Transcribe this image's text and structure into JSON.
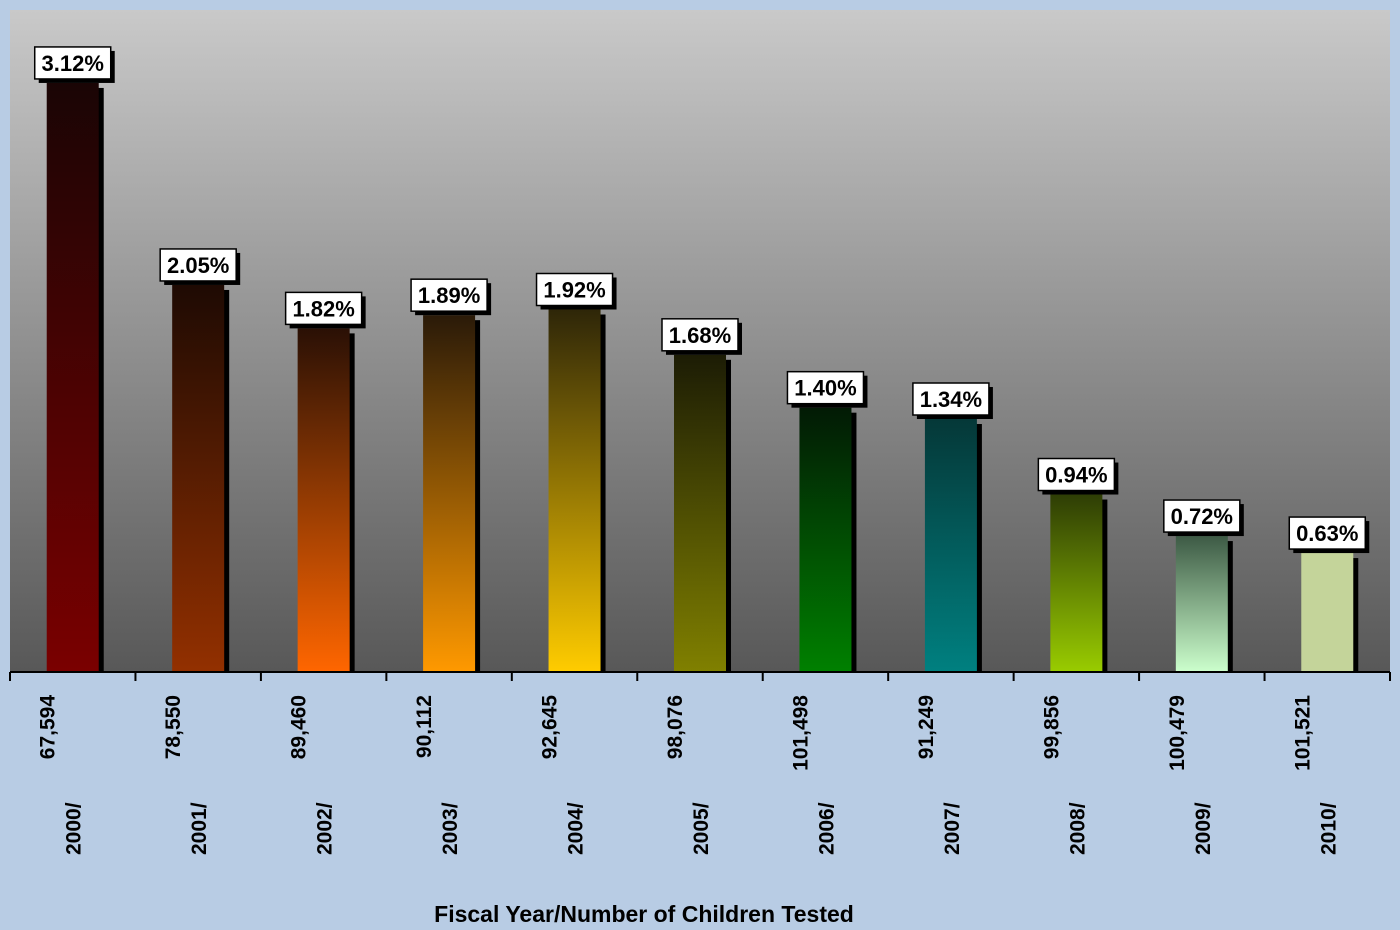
{
  "chart_data": {
    "type": "bar",
    "title": "",
    "xlabel": "Fiscal Year/Number of Children Tested",
    "ylabel": "",
    "ylim": [
      0,
      3.5
    ],
    "grid": false,
    "legend": "none",
    "categories": [
      {
        "year": "2000/",
        "count": "67,594"
      },
      {
        "year": "2001/",
        "count": "78,550"
      },
      {
        "year": "2002/",
        "count": "89,460"
      },
      {
        "year": "2003/",
        "count": "90,112"
      },
      {
        "year": "2004/",
        "count": "92,645"
      },
      {
        "year": "2005/",
        "count": "98,076"
      },
      {
        "year": "2006/",
        "count": "101,498"
      },
      {
        "year": "2007/",
        "count": "91,249"
      },
      {
        "year": "2008/",
        "count": "99,856"
      },
      {
        "year": "2009/",
        "count": "100,479"
      },
      {
        "year": "2010/",
        "count": "101,521"
      }
    ],
    "values": [
      3.12,
      2.05,
      1.82,
      1.89,
      1.92,
      1.68,
      1.4,
      1.34,
      0.94,
      0.72,
      0.63
    ],
    "value_labels": [
      "3.12%",
      "2.05%",
      "1.82%",
      "1.89%",
      "1.92%",
      "1.68%",
      "1.40%",
      "1.34%",
      "0.94%",
      "0.72%",
      "0.63%"
    ],
    "bar_colors": [
      {
        "top": "#1a0505",
        "bottom": "#7a0000"
      },
      {
        "top": "#1e0a03",
        "bottom": "#933000"
      },
      {
        "top": "#2a1005",
        "bottom": "#ff6600"
      },
      {
        "top": "#2a1a08",
        "bottom": "#ff9900"
      },
      {
        "top": "#2e2608",
        "bottom": "#ffcc00"
      },
      {
        "top": "#1c1c05",
        "bottom": "#808000"
      },
      {
        "top": "#021a05",
        "bottom": "#008000"
      },
      {
        "top": "#053838",
        "bottom": "#008080"
      },
      {
        "top": "#2e3d05",
        "bottom": "#99cc00"
      },
      {
        "top": "#3d5a45",
        "bottom": "#ccffcc"
      },
      {
        "top": "#c4d49a",
        "bottom": "#c4d49a"
      }
    ],
    "colors": {
      "background": "#b8cce4",
      "plot_top": "#c9c9c9",
      "plot_bottom": "#585858"
    }
  }
}
